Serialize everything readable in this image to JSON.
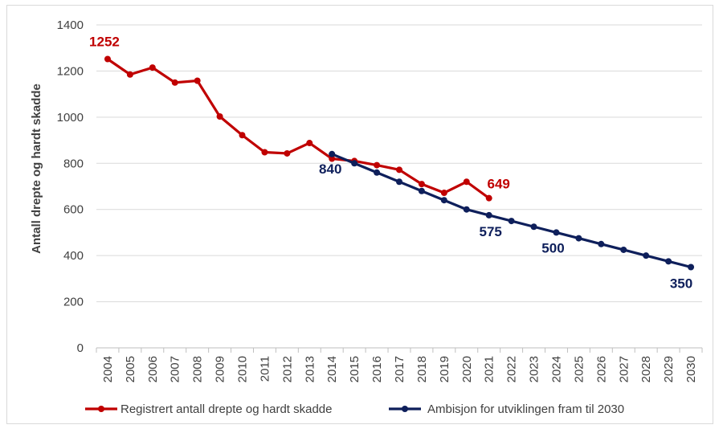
{
  "chart_data": {
    "type": "line",
    "title": "",
    "xlabel": "",
    "ylabel": "Antall drepte og hardt skadde",
    "ylim": [
      0,
      1400
    ],
    "yticks": [
      "0",
      "200",
      "400",
      "600",
      "800",
      "1000",
      "1200",
      "1400"
    ],
    "categories": [
      "2004",
      "2005",
      "2006",
      "2007",
      "2008",
      "2009",
      "2010",
      "2011",
      "2012",
      "2013",
      "2014",
      "2015",
      "2016",
      "2017",
      "2018",
      "2019",
      "2020",
      "2021",
      "2022",
      "2023",
      "2024",
      "2025",
      "2026",
      "2027",
      "2028",
      "2029",
      "2030"
    ],
    "grid": true,
    "legend_position": "bottom",
    "series": [
      {
        "name": "Registrert antall drepte og hardt skadde",
        "color": "#c00000",
        "x": [
          "2004",
          "2005",
          "2006",
          "2007",
          "2008",
          "2009",
          "2010",
          "2011",
          "2012",
          "2013",
          "2014",
          "2015",
          "2016",
          "2017",
          "2018",
          "2019",
          "2020",
          "2021"
        ],
        "values": [
          1252,
          1185,
          1215,
          1150,
          1158,
          1003,
          922,
          848,
          843,
          888,
          820,
          810,
          792,
          772,
          710,
          672,
          720,
          649
        ]
      },
      {
        "name": "Ambisjon for utviklingen fram til 2030",
        "color": "#0e1f5b",
        "x": [
          "2014",
          "2015",
          "2016",
          "2017",
          "2018",
          "2019",
          "2020",
          "2021",
          "2022",
          "2023",
          "2024",
          "2025",
          "2026",
          "2027",
          "2028",
          "2029",
          "2030"
        ],
        "values": [
          840,
          800,
          760,
          720,
          680,
          640,
          600,
          575,
          550,
          525,
          500,
          475,
          450,
          425,
          400,
          375,
          350
        ]
      }
    ],
    "annotations": [
      {
        "text": "1252",
        "series": 0,
        "x": "2004"
      },
      {
        "text": "649",
        "series": 0,
        "x": "2021"
      },
      {
        "text": "840",
        "series": 1,
        "x": "2014"
      },
      {
        "text": "575",
        "series": 1,
        "x": "2021"
      },
      {
        "text": "500",
        "series": 1,
        "x": "2024"
      },
      {
        "text": "350",
        "series": 1,
        "x": "2030"
      }
    ]
  }
}
